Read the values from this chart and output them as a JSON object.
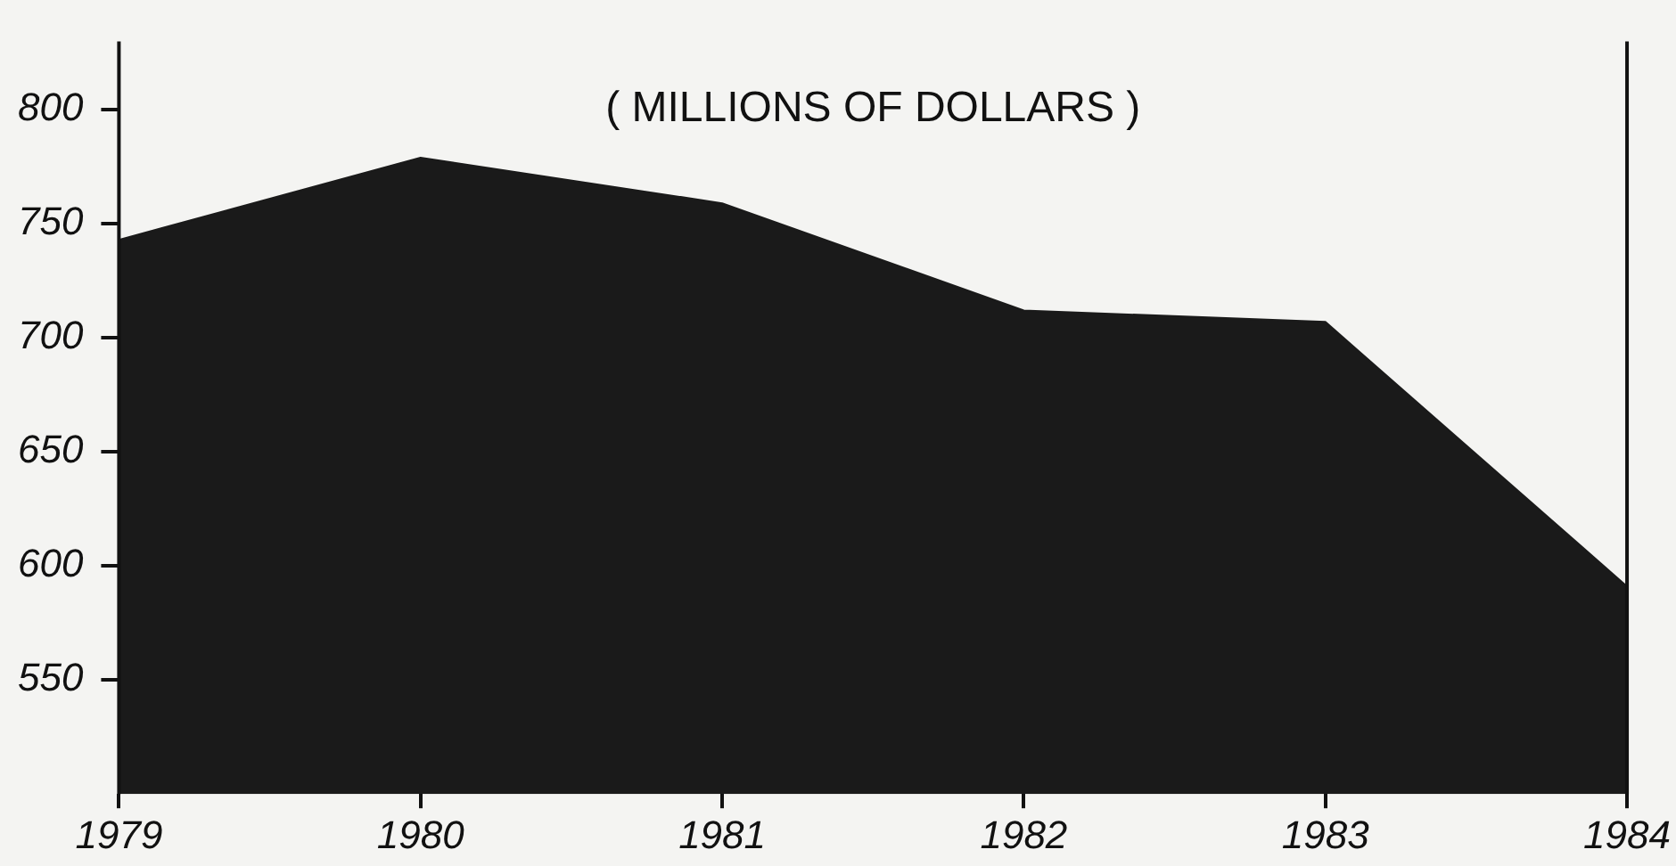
{
  "chart_data": {
    "type": "area",
    "title": "( MILLIONS OF DOLLARS )",
    "x": [
      1979,
      1980,
      1981,
      1982,
      1983,
      1984
    ],
    "series": [
      {
        "color": "#1a1a1a",
        "values": [
          743,
          779,
          759,
          712,
          707,
          591
        ]
      }
    ],
    "xlim": [
      1979,
      1984
    ],
    "xticks": [
      1979,
      1980,
      1981,
      1982,
      1983,
      1984
    ],
    "ylim": [
      500,
      830
    ],
    "yticks": [
      550,
      600,
      650,
      700,
      750,
      800
    ],
    "grid": false,
    "legend": false
  }
}
